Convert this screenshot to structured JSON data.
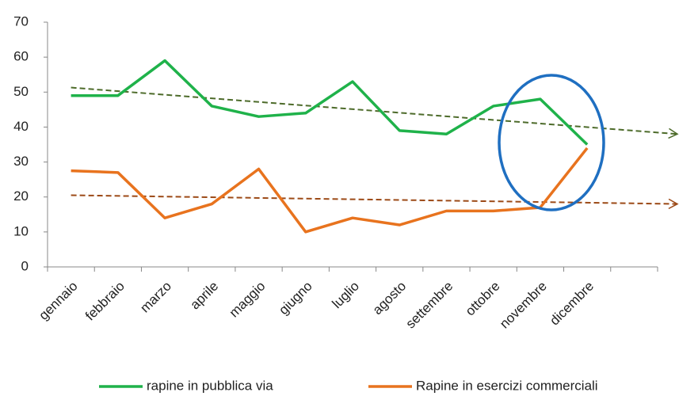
{
  "chart_data": {
    "type": "line",
    "categories": [
      "gennaio",
      "febbraio",
      "marzo",
      "aprile",
      "maggio",
      "giugno",
      "luglio",
      "agosto",
      "settembre",
      "ottobre",
      "novembre",
      "dicembre",
      null
    ],
    "series": [
      {
        "name": "rapine in pubblica via",
        "color": "#1fb24a",
        "values": [
          49,
          49,
          59,
          46,
          43,
          44,
          53,
          39,
          38,
          46,
          48,
          35,
          null
        ]
      },
      {
        "name": "Rapine in esercizi commerciali",
        "color": "#e8731e",
        "values": [
          27.5,
          27,
          14,
          18,
          28,
          10,
          14,
          12,
          16,
          16,
          17,
          34,
          null
        ]
      }
    ],
    "trendlines": [
      {
        "color": "#4d6b2a",
        "values": [
          51.3,
          38
        ]
      },
      {
        "color": "#9c4a17",
        "values": [
          20.5,
          18
        ]
      }
    ],
    "ylim": [
      0,
      70
    ],
    "yticks": [
      0,
      10,
      20,
      30,
      40,
      50,
      60,
      70
    ],
    "legend": "bottom"
  }
}
